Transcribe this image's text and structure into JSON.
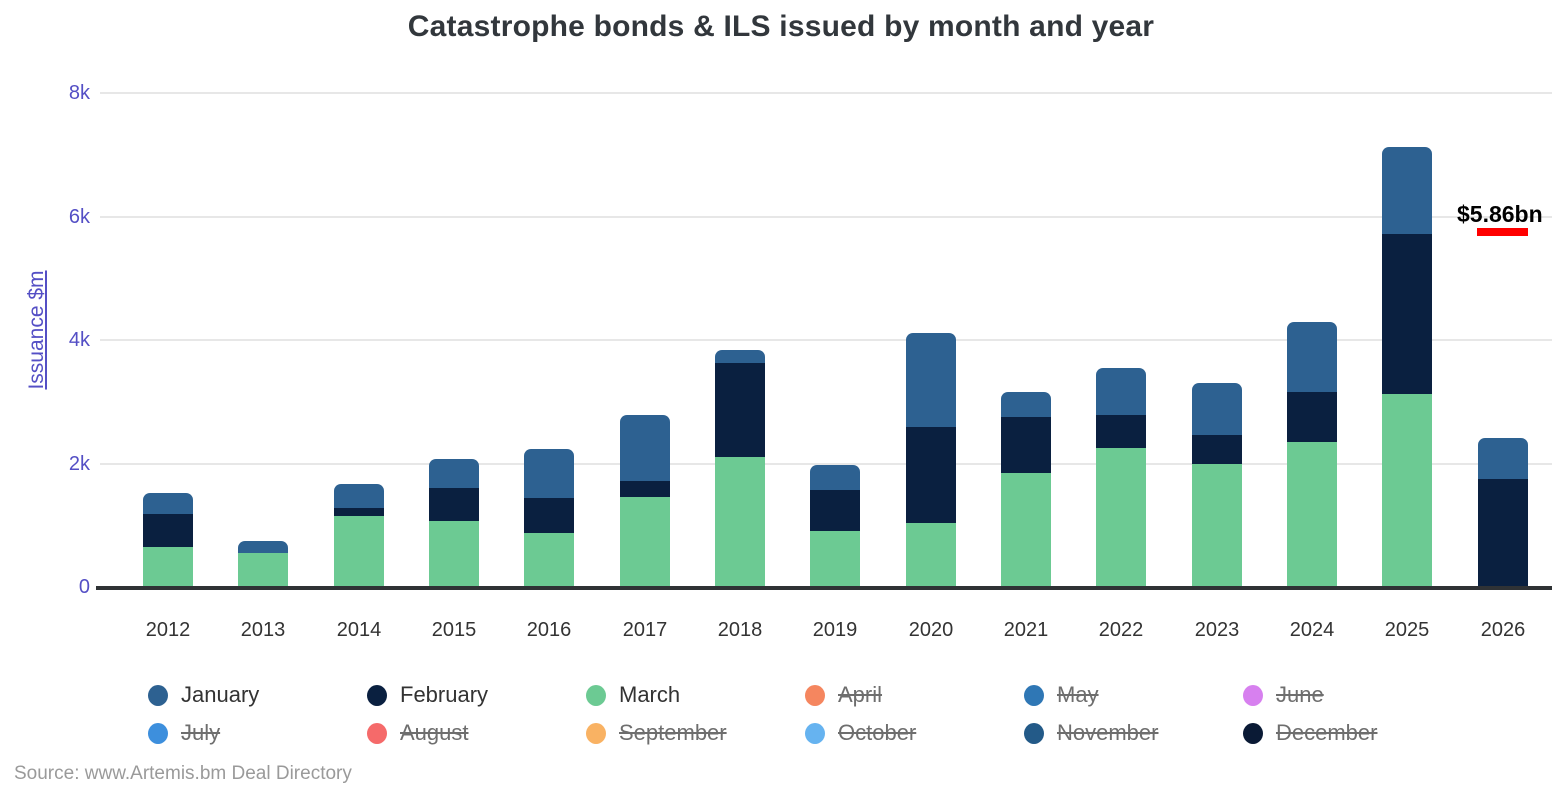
{
  "title": "Catastrophe bonds & ILS issued by month and year",
  "source": "Source: www.Artemis.bm Deal Directory",
  "annotation": {
    "text": "$5.86bn",
    "underline_color": "#ff0000"
  },
  "y_axis": {
    "title": "Issuance $m",
    "color": "#544fc5"
  },
  "chart_data": {
    "type": "bar",
    "stacked": true,
    "title": "Catastrophe bonds & ILS issued by month and year",
    "ylabel": "Issuance $m",
    "xlabel": "",
    "ylim": [
      0,
      8000
    ],
    "yticks": [
      {
        "value": 0,
        "label": "0"
      },
      {
        "value": 2000,
        "label": "2k"
      },
      {
        "value": 4000,
        "label": "4k"
      },
      {
        "value": 6000,
        "label": "6k"
      },
      {
        "value": 8000,
        "label": "8k"
      }
    ],
    "grid": true,
    "legend_position": "bottom",
    "categories": [
      "2012",
      "2013",
      "2014",
      "2015",
      "2016",
      "2017",
      "2018",
      "2019",
      "2020",
      "2021",
      "2022",
      "2023",
      "2024",
      "2025",
      "2026"
    ],
    "series": [
      {
        "name": "March",
        "color": "#6cca93",
        "values": [
          650,
          555,
          1150,
          1070,
          875,
          1455,
          2105,
          905,
          1035,
          1845,
          2250,
          1990,
          2345,
          3125,
          0
        ]
      },
      {
        "name": "February",
        "color": "#0a2040",
        "values": [
          530,
          0,
          130,
          535,
          565,
          260,
          1520,
          665,
          1555,
          905,
          535,
          470,
          810,
          2590,
          1750
        ]
      },
      {
        "name": "January",
        "color": "#2d6191",
        "values": [
          340,
          190,
          390,
          470,
          795,
          1070,
          210,
          405,
          1520,
          405,
          760,
          840,
          1135,
          1410,
          665
        ]
      }
    ],
    "legend": [
      {
        "label": "January",
        "color": "#2d6191",
        "active": true
      },
      {
        "label": "February",
        "color": "#0a2040",
        "active": true
      },
      {
        "label": "March",
        "color": "#6cca93",
        "active": true
      },
      {
        "label": "April",
        "color": "#f5865f",
        "active": false
      },
      {
        "label": "May",
        "color": "#2f77b5",
        "active": false
      },
      {
        "label": "June",
        "color": "#d780ef",
        "active": false
      },
      {
        "label": "July",
        "color": "#3d8fdd",
        "active": false
      },
      {
        "label": "August",
        "color": "#f56a6a",
        "active": false
      },
      {
        "label": "September",
        "color": "#f9b263",
        "active": false
      },
      {
        "label": "October",
        "color": "#66b3f0",
        "active": false
      },
      {
        "label": "November",
        "color": "#235a88",
        "active": false
      },
      {
        "label": "December",
        "color": "#0a1a35",
        "active": false
      }
    ]
  }
}
